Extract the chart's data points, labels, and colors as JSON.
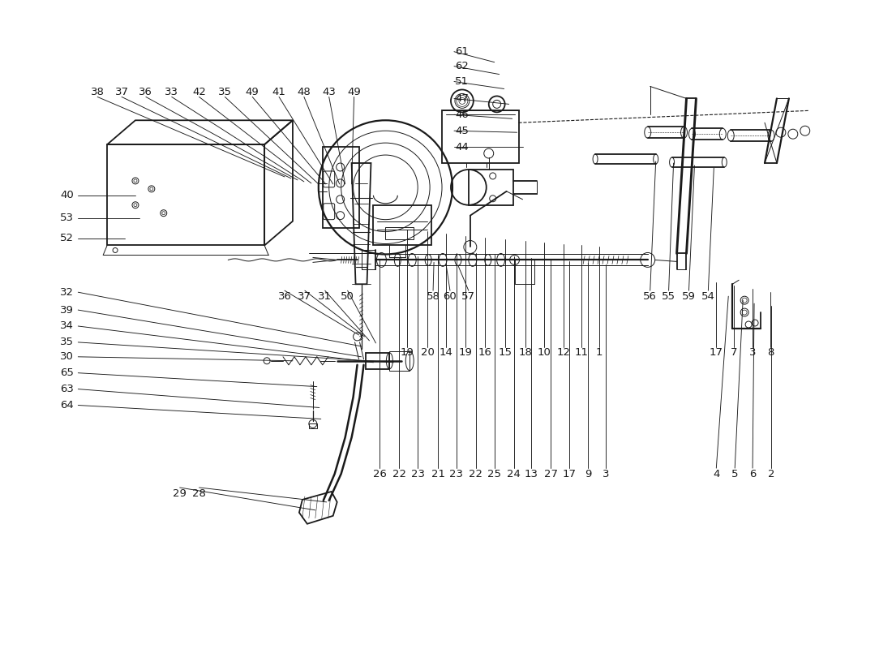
{
  "bg_color": "#ffffff",
  "line_color": "#1a1a1a",
  "lw_main": 1.3,
  "lw_thin": 0.7,
  "lw_leader": 0.65,
  "fs_label": 9.5,
  "upper_labels": [
    [
      "38",
      118,
      668
    ],
    [
      "37",
      148,
      668
    ],
    [
      "36",
      178,
      668
    ],
    [
      "33",
      210,
      668
    ],
    [
      "42",
      244,
      668
    ],
    [
      "35",
      276,
      668
    ],
    [
      "49",
      310,
      668
    ],
    [
      "41",
      343,
      668
    ],
    [
      "48",
      374,
      668
    ],
    [
      "43",
      405,
      668
    ],
    [
      "49",
      436,
      668
    ]
  ],
  "right_col_labels": [
    [
      "61",
      570,
      718
    ],
    [
      "62",
      570,
      700
    ],
    [
      "51",
      570,
      681
    ],
    [
      "47",
      570,
      660
    ],
    [
      "46",
      570,
      640
    ],
    [
      "45",
      570,
      620
    ],
    [
      "44",
      570,
      600
    ]
  ],
  "left_col_labels": [
    [
      "40",
      80,
      540
    ],
    [
      "53",
      80,
      512
    ],
    [
      "52",
      80,
      487
    ]
  ],
  "lower_left_labels": [
    [
      "32",
      80,
      420
    ],
    [
      "39",
      80,
      398
    ],
    [
      "34",
      80,
      378
    ],
    [
      "35",
      80,
      358
    ],
    [
      "30",
      80,
      340
    ],
    [
      "65",
      80,
      320
    ],
    [
      "63",
      80,
      300
    ],
    [
      "64",
      80,
      280
    ]
  ],
  "mid_lower_labels": [
    [
      "36",
      350,
      415
    ],
    [
      "37",
      375,
      415
    ],
    [
      "31",
      400,
      415
    ],
    [
      "50",
      428,
      415
    ]
  ],
  "mid_labels": [
    [
      "58",
      534,
      415
    ],
    [
      "60",
      555,
      415
    ],
    [
      "57",
      578,
      415
    ]
  ],
  "right_upper_labels": [
    [
      "56",
      803,
      415
    ],
    [
      "55",
      826,
      415
    ],
    [
      "59",
      851,
      415
    ],
    [
      "54",
      875,
      415
    ]
  ],
  "bottom_row1_labels": [
    [
      "19",
      502,
      345
    ],
    [
      "20",
      527,
      345
    ],
    [
      "14",
      550,
      345
    ],
    [
      "19",
      574,
      345
    ],
    [
      "16",
      598,
      345
    ],
    [
      "15",
      623,
      345
    ],
    [
      "18",
      648,
      345
    ],
    [
      "10",
      672,
      345
    ],
    [
      "12",
      696,
      345
    ],
    [
      "11",
      718,
      345
    ],
    [
      "1",
      740,
      345
    ]
  ],
  "bottom_row2_labels": [
    [
      "26",
      468,
      195
    ],
    [
      "22",
      492,
      195
    ],
    [
      "23",
      515,
      195
    ],
    [
      "21",
      540,
      195
    ],
    [
      "23",
      563,
      195
    ],
    [
      "22",
      587,
      195
    ],
    [
      "25",
      610,
      195
    ],
    [
      "24",
      634,
      195
    ],
    [
      "13",
      656,
      195
    ],
    [
      "27",
      680,
      195
    ],
    [
      "17",
      703,
      195
    ],
    [
      "9",
      726,
      195
    ],
    [
      "3",
      748,
      195
    ]
  ],
  "bottom_right_labels": [
    [
      "17",
      885,
      345
    ],
    [
      "7",
      907,
      345
    ],
    [
      "3",
      930,
      345
    ],
    [
      "8",
      952,
      345
    ]
  ],
  "foot_labels": [
    [
      "29",
      220,
      170
    ],
    [
      "28",
      244,
      170
    ]
  ],
  "br_labels": [
    [
      "4",
      885,
      195
    ],
    [
      "5",
      908,
      195
    ],
    [
      "6",
      930,
      195
    ],
    [
      "2",
      953,
      195
    ]
  ]
}
